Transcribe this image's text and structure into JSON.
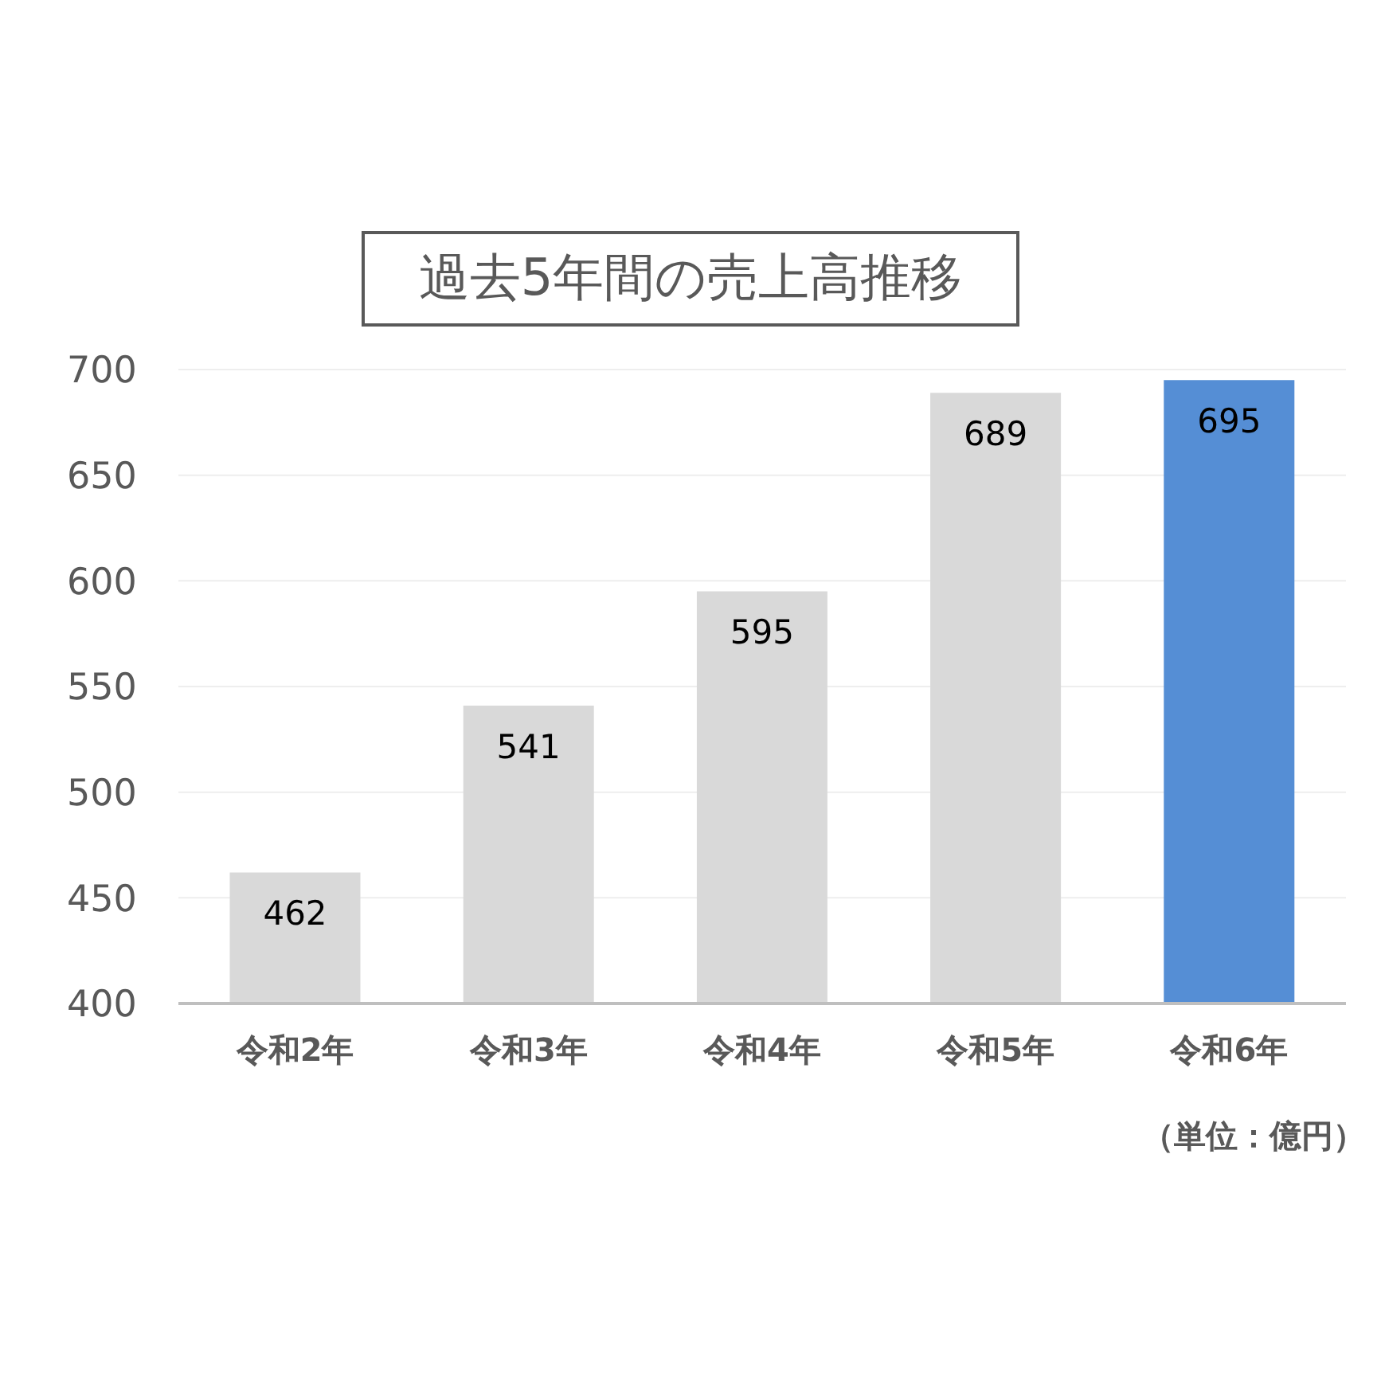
{
  "chart_data": {
    "type": "bar",
    "title": "過去5年間の売上高推移",
    "categories": [
      "令和2年",
      "令和3年",
      "令和4年",
      "令和5年",
      "令和6年"
    ],
    "values": [
      462,
      541,
      595,
      689,
      695
    ],
    "colors": [
      "#d9d9d9",
      "#d9d9d9",
      "#d9d9d9",
      "#d9d9d9",
      "#558ed5"
    ],
    "ylim": [
      400,
      700
    ],
    "yticks": [
      400,
      450,
      500,
      550,
      600,
      650,
      700
    ],
    "grid": "y",
    "data_labels": true,
    "annotations": [
      "（単位：億円）"
    ]
  }
}
